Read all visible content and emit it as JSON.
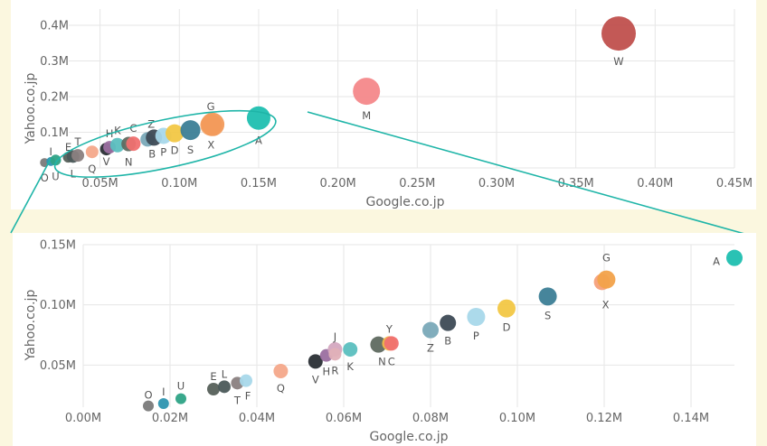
{
  "chart_data": [
    {
      "type": "scatter",
      "xlabel": "Google.co.jp",
      "ylabel": "Yahoo.co.jp",
      "xlim": [
        0.02,
        0.45
      ],
      "ylim": [
        0,
        0.4
      ],
      "x_ticks": [
        "0.05M",
        "0.10M",
        "0.15M",
        "0.20M",
        "0.25M",
        "0.30M",
        "0.35M",
        "0.40M",
        "0.45M"
      ],
      "x_tick_values": [
        0.05,
        0.1,
        0.15,
        0.2,
        0.25,
        0.3,
        0.35,
        0.4,
        0.45
      ],
      "y_ticks": [
        "0.1M",
        "0.2M",
        "0.3M",
        "0.4M"
      ],
      "y_tick_values": [
        0.1,
        0.2,
        0.3,
        0.4
      ],
      "grid": true,
      "zoom_ellipse": {
        "x_range": [
          0.02,
          0.16
        ],
        "y_range": [
          0.0,
          0.155
        ]
      },
      "points": [
        {
          "label": "W",
          "x": 0.377,
          "y": 0.377,
          "color": "#c0504d",
          "r": 19
        },
        {
          "label": "M",
          "x": 0.218,
          "y": 0.215,
          "color": "#f4888a",
          "r": 15
        },
        {
          "label": "A",
          "x": 0.15,
          "y": 0.14,
          "color": "#1fbfb0",
          "r": 13
        },
        {
          "label": "G",
          "x": 0.121,
          "y": 0.122,
          "color": "#f29a5a",
          "r": 13
        },
        {
          "label": "X",
          "x": 0.12,
          "y": 0.12,
          "color": "#f5b07a",
          "r": 12
        },
        {
          "label": "S",
          "x": 0.107,
          "y": 0.106,
          "color": "#3c7e96",
          "r": 11
        },
        {
          "label": "D",
          "x": 0.097,
          "y": 0.097,
          "color": "#f2c744",
          "r": 10
        },
        {
          "label": "P",
          "x": 0.09,
          "y": 0.09,
          "color": "#a8d8ea",
          "r": 9
        },
        {
          "label": "B",
          "x": 0.084,
          "y": 0.085,
          "color": "#3d4a55",
          "r": 9
        },
        {
          "label": "Z",
          "x": 0.08,
          "y": 0.08,
          "color": "#7aa9b8",
          "r": 8
        },
        {
          "label": "C",
          "x": 0.071,
          "y": 0.068,
          "color": "#f07070",
          "r": 8
        },
        {
          "label": "N",
          "x": 0.068,
          "y": 0.067,
          "color": "#5f6a60",
          "r": 8
        },
        {
          "label": "K",
          "x": 0.061,
          "y": 0.064,
          "color": "#5bbfbf",
          "r": 8
        },
        {
          "label": "H",
          "x": 0.056,
          "y": 0.058,
          "color": "#9b6fa0",
          "r": 7
        },
        {
          "label": "V",
          "x": 0.054,
          "y": 0.053,
          "color": "#2a2f35",
          "r": 7
        },
        {
          "label": "Q",
          "x": 0.045,
          "y": 0.045,
          "color": "#f4a88a",
          "r": 7
        },
        {
          "label": "T",
          "x": 0.036,
          "y": 0.035,
          "color": "#8a7f80",
          "r": 7
        },
        {
          "label": "L",
          "x": 0.033,
          "y": 0.032,
          "color": "#4b5a5a",
          "r": 7
        },
        {
          "label": "E",
          "x": 0.03,
          "y": 0.03,
          "color": "#56605a",
          "r": 6
        },
        {
          "label": "U",
          "x": 0.022,
          "y": 0.022,
          "color": "#2ea386",
          "r": 6
        },
        {
          "label": "I",
          "x": 0.019,
          "y": 0.018,
          "color": "#2d95b0",
          "r": 5
        },
        {
          "label": "O",
          "x": 0.015,
          "y": 0.015,
          "color": "#7a7a7a",
          "r": 5
        }
      ]
    },
    {
      "type": "scatter",
      "xlabel": "Google.co.jp",
      "ylabel": "Yahoo.co.jp",
      "xlim": [
        0,
        0.15
      ],
      "ylim": [
        0.015,
        0.15
      ],
      "x_ticks": [
        "0.00M",
        "0.02M",
        "0.04M",
        "0.06M",
        "0.08M",
        "0.10M",
        "0.12M",
        "0.14M"
      ],
      "x_tick_values": [
        0,
        0.02,
        0.04,
        0.06,
        0.08,
        0.1,
        0.12,
        0.14
      ],
      "y_ticks": [
        "0.05M",
        "0.10M",
        "0.15M"
      ],
      "y_tick_values": [
        0.05,
        0.1,
        0.15
      ],
      "grid": true,
      "points": [
        {
          "label": "A",
          "x": 0.15,
          "y": 0.139,
          "color": "#1fbfb0",
          "r": 9
        },
        {
          "label": "G",
          "x": 0.1205,
          "y": 0.121,
          "color": "#f2a24a",
          "r": 10
        },
        {
          "label": "X",
          "x": 0.1195,
          "y": 0.119,
          "color": "#f5a07a",
          "r": 9
        },
        {
          "label": "S",
          "x": 0.107,
          "y": 0.107,
          "color": "#3c7e96",
          "r": 10
        },
        {
          "label": "D",
          "x": 0.0975,
          "y": 0.097,
          "color": "#f2c744",
          "r": 10
        },
        {
          "label": "P",
          "x": 0.0905,
          "y": 0.09,
          "color": "#a8d8ea",
          "r": 10
        },
        {
          "label": "B",
          "x": 0.084,
          "y": 0.085,
          "color": "#3d4a55",
          "r": 9
        },
        {
          "label": "Z",
          "x": 0.08,
          "y": 0.079,
          "color": "#7aa9b8",
          "r": 9
        },
        {
          "label": "C",
          "x": 0.071,
          "y": 0.068,
          "color": "#f07070",
          "r": 8
        },
        {
          "label": "Y",
          "x": 0.0705,
          "y": 0.068,
          "color": "#f2b84a",
          "r": 8
        },
        {
          "label": "N",
          "x": 0.068,
          "y": 0.067,
          "color": "#5f6a60",
          "r": 9
        },
        {
          "label": "K",
          "x": 0.0615,
          "y": 0.063,
          "color": "#5bbfbf",
          "r": 8
        },
        {
          "label": "J",
          "x": 0.058,
          "y": 0.063,
          "color": "#d4a8c0",
          "r": 8
        },
        {
          "label": "R",
          "x": 0.058,
          "y": 0.059,
          "color": "#e0b0b8",
          "r": 7
        },
        {
          "label": "H",
          "x": 0.056,
          "y": 0.058,
          "color": "#9b6fa0",
          "r": 7
        },
        {
          "label": "V",
          "x": 0.0535,
          "y": 0.053,
          "color": "#2a2f35",
          "r": 8
        },
        {
          "label": "Q",
          "x": 0.0455,
          "y": 0.045,
          "color": "#f4a88a",
          "r": 8
        },
        {
          "label": "F",
          "x": 0.0375,
          "y": 0.037,
          "color": "#a8d8ea",
          "r": 7
        },
        {
          "label": "T",
          "x": 0.0355,
          "y": 0.035,
          "color": "#8a7f80",
          "r": 7
        },
        {
          "label": "L",
          "x": 0.0325,
          "y": 0.032,
          "color": "#4b5a5a",
          "r": 7
        },
        {
          "label": "E",
          "x": 0.03,
          "y": 0.03,
          "color": "#56605a",
          "r": 7
        },
        {
          "label": "U",
          "x": 0.0225,
          "y": 0.022,
          "color": "#2ea386",
          "r": 6
        },
        {
          "label": "I",
          "x": 0.0185,
          "y": 0.018,
          "color": "#2d95b0",
          "r": 6
        },
        {
          "label": "O",
          "x": 0.015,
          "y": 0.016,
          "color": "#7a7a7a",
          "r": 6
        }
      ]
    }
  ]
}
